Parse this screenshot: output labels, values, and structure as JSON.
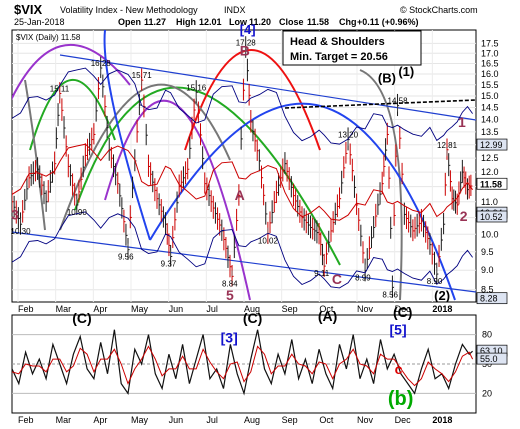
{
  "header": {
    "symbol": "$VIX",
    "name": "Volatility Index - New Methodology",
    "exchange": "INDX",
    "date": "25-Jan-2018",
    "open_label": "Open",
    "open": "11.27",
    "high_label": "High",
    "high": "12.01",
    "low_label": "Low",
    "low": "11.20",
    "close_label": "Close",
    "close": "11.58",
    "chg_label": "Chg",
    "chg": "+0.11 (+0.96%)",
    "copyright": "© StockCharts.com",
    "legend": "$VIX (Daily) 11.58"
  },
  "annotation_box": {
    "line1": "Head & Shoulders",
    "line2": "Min. Target = 20.56"
  },
  "colors": {
    "bar_up": "#1a1a1a",
    "bar_down": "#cc0000",
    "ma50": "#cc0000",
    "bollinger": "#000080",
    "channel": "#1f3fd0",
    "cycle_purple": "#9933cc",
    "cycle_green": "#22aa22",
    "cycle_red": "#ee1111",
    "cycle_gray": "#777777",
    "cycle_blue": "#2244ee",
    "wave_maroon": "#993355",
    "wave_blue": "#1111cc",
    "wave_green": "#00aa00",
    "wave_red": "#dd0000",
    "last_badge": "#dde4f2"
  },
  "chart_data": [
    {
      "type": "bar",
      "title": "$VIX (Daily) 11.58",
      "y_scale": "log",
      "ylim": [
        8.2,
        18.2
      ],
      "yticks": [
        "8.5",
        "9.0",
        "9.5",
        "10.0",
        "10.5",
        "11.0",
        "11.5",
        "12.0",
        "12.5",
        "13.0",
        "13.5",
        "14.0",
        "14.5",
        "15.0",
        "15.5",
        "16.0",
        "16.5",
        "17.0",
        "17.5"
      ],
      "x_months": [
        "Feb",
        "Mar",
        "Apr",
        "May",
        "Jun",
        "Jul",
        "Aug",
        "Sep",
        "Oct",
        "Nov",
        "Dec",
        "2018"
      ],
      "last_values": [
        {
          "label": "12.99",
          "value": 12.99
        },
        {
          "label": "11.58",
          "value": 11.58
        },
        {
          "label": "10.64",
          "value": 10.64
        },
        {
          "label": "10.52",
          "value": 10.52
        },
        {
          "label": "8.28",
          "value": 8.28
        }
      ],
      "price_labels": [
        {
          "text": "10.30",
          "x": 5,
          "y": 10.3
        },
        {
          "text": "15.11",
          "x": 28,
          "y": 15.11
        },
        {
          "text": "10.90",
          "x": 38,
          "y": 10.9
        },
        {
          "text": "16.28",
          "x": 52,
          "y": 16.28
        },
        {
          "text": "15.71",
          "x": 76,
          "y": 15.71
        },
        {
          "text": "9.56",
          "x": 68,
          "y": 9.56
        },
        {
          "text": "9.37",
          "x": 93,
          "y": 9.37
        },
        {
          "text": "15.16",
          "x": 108,
          "y": 15.16
        },
        {
          "text": "8.84",
          "x": 129,
          "y": 8.84
        },
        {
          "text": "17.28",
          "x": 137,
          "y": 17.28
        },
        {
          "text": "10.02",
          "x": 150,
          "y": 10.02
        },
        {
          "text": "9.11",
          "x": 183,
          "y": 9.11
        },
        {
          "text": "13.20",
          "x": 197,
          "y": 13.2
        },
        {
          "text": "8.99",
          "x": 207,
          "y": 8.99
        },
        {
          "text": "14.58",
          "x": 226,
          "y": 14.58
        },
        {
          "text": "8.56",
          "x": 223,
          "y": 8.56
        },
        {
          "text": "12.81",
          "x": 255,
          "y": 12.81
        },
        {
          "text": "8.90",
          "x": 249,
          "y": 8.9
        }
      ],
      "wave_labels": [
        {
          "text": "[4]",
          "x": 137,
          "y": 18.0,
          "color": "#1111cc"
        },
        {
          "text": "B",
          "x": 137,
          "y": 16.9,
          "color": "#993355"
        },
        {
          "text": "(B)",
          "x": 218,
          "y": 15.6,
          "color": "#000000"
        },
        {
          "text": "(1)",
          "x": 230,
          "y": 15.9,
          "color": "#000000"
        },
        {
          "text": "1",
          "x": 265,
          "y": 13.7,
          "color": "#993355"
        },
        {
          "text": "2",
          "x": 266,
          "y": 10.4,
          "color": "#993355"
        },
        {
          "text": "(2)",
          "x": 251,
          "y": 8.25,
          "color": "#000000"
        },
        {
          "text": "3",
          "x": 3,
          "y": 10.45,
          "color": "#993355"
        },
        {
          "text": "A",
          "x": 134,
          "y": 11.05,
          "color": "#993355"
        },
        {
          "text": "C",
          "x": 191,
          "y": 8.65,
          "color": "#993355"
        },
        {
          "text": "5",
          "x": 129,
          "y": 8.25,
          "color": "#993355"
        }
      ],
      "series": [
        {
          "name": "$VIX (Daily) 11.58",
          "x": [
            0,
            5,
            10,
            15,
            20,
            25,
            28,
            33,
            38,
            43,
            48,
            52,
            57,
            62,
            68,
            72,
            76,
            80,
            85,
            90,
            93,
            98,
            103,
            108,
            113,
            118,
            123,
            129,
            133,
            137,
            140,
            145,
            150,
            155,
            160,
            165,
            170,
            175,
            180,
            183,
            187,
            192,
            197,
            202,
            207,
            212,
            217,
            220,
            223,
            226,
            230,
            235,
            240,
            245,
            249,
            253,
            255,
            258,
            261,
            264,
            267,
            270
          ],
          "values": [
            11.0,
            10.3,
            11.8,
            12.1,
            11.0,
            12.3,
            15.11,
            12.2,
            10.9,
            12.6,
            13.4,
            16.28,
            12.8,
            11.6,
            9.56,
            12.4,
            15.71,
            12.2,
            11.1,
            10.3,
            9.37,
            11.5,
            12.1,
            15.16,
            11.6,
            10.8,
            10.1,
            8.84,
            11.2,
            17.28,
            13.9,
            12.4,
            10.02,
            11.3,
            12.3,
            11.2,
            10.5,
            10.2,
            10.0,
            9.11,
            10.1,
            11.1,
            13.2,
            10.9,
            8.99,
            10.2,
            11.6,
            13.4,
            8.56,
            14.58,
            10.6,
            10.1,
            10.4,
            9.7,
            8.9,
            10.3,
            12.81,
            11.1,
            10.9,
            12.0,
            11.4,
            11.58
          ]
        }
      ],
      "xlim": [
        0,
        272
      ]
    },
    {
      "type": "line",
      "title": "",
      "ylim": [
        0,
        100
      ],
      "yticks": [
        "20",
        "50",
        "80"
      ],
      "x_months": [
        "Feb",
        "Mar",
        "Apr",
        "May",
        "Jun",
        "Jul",
        "Aug",
        "Sep",
        "Oct",
        "Nov",
        "Dec",
        "2018"
      ],
      "last_values": [
        {
          "label": "63.10",
          "value": 63.1
        },
        {
          "label": "55.0",
          "value": 55.0
        }
      ],
      "wave_labels": [
        {
          "text": "(C)",
          "x": 40,
          "y": 92,
          "color": "#000000"
        },
        {
          "text": "(C)",
          "x": 140,
          "y": 92,
          "color": "#000000"
        },
        {
          "text": "(A)",
          "x": 184,
          "y": 94,
          "color": "#000000"
        },
        {
          "text": "(C)",
          "x": 228,
          "y": 98,
          "color": "#000000"
        },
        {
          "text": "[3]",
          "x": 127,
          "y": 72,
          "color": "#1111cc"
        },
        {
          "text": "[5]",
          "x": 226,
          "y": 80,
          "color": "#1111cc"
        },
        {
          "text": "c",
          "x": 229,
          "y": 40,
          "color": "#dd0000"
        },
        {
          "text": "(b)",
          "x": 225,
          "y": 8,
          "color": "#00aa00"
        }
      ],
      "series": [
        {
          "name": "",
          "x": [
            0,
            4,
            8,
            12,
            16,
            20,
            24,
            28,
            32,
            36,
            40,
            44,
            48,
            52,
            56,
            60,
            64,
            68,
            72,
            76,
            80,
            84,
            88,
            92,
            96,
            100,
            104,
            108,
            112,
            116,
            120,
            124,
            128,
            132,
            136,
            140,
            144,
            148,
            152,
            156,
            160,
            164,
            168,
            172,
            176,
            180,
            184,
            188,
            192,
            196,
            200,
            204,
            208,
            212,
            216,
            220,
            224,
            228,
            232,
            236,
            240,
            244,
            248,
            252,
            256,
            260,
            264,
            268,
            270
          ],
          "values": [
            45,
            30,
            62,
            40,
            55,
            35,
            70,
            50,
            30,
            60,
            78,
            45,
            35,
            72,
            40,
            85,
            30,
            20,
            65,
            50,
            80,
            40,
            25,
            60,
            35,
            70,
            30,
            55,
            80,
            35,
            45,
            25,
            70,
            40,
            20,
            55,
            85,
            45,
            30,
            60,
            40,
            75,
            35,
            55,
            30,
            65,
            40,
            25,
            70,
            45,
            80,
            35,
            55,
            30,
            75,
            45,
            60,
            40,
            30,
            20,
            45,
            65,
            35,
            40,
            25,
            50,
            70,
            60,
            63.1
          ]
        },
        {
          "name": "",
          "x": [
            0,
            4,
            8,
            12,
            16,
            20,
            24,
            28,
            32,
            36,
            40,
            44,
            48,
            52,
            56,
            60,
            64,
            68,
            72,
            76,
            80,
            84,
            88,
            92,
            96,
            100,
            104,
            108,
            112,
            116,
            120,
            124,
            128,
            132,
            136,
            140,
            144,
            148,
            152,
            156,
            160,
            164,
            168,
            172,
            176,
            180,
            184,
            188,
            192,
            196,
            200,
            204,
            208,
            212,
            216,
            220,
            224,
            228,
            232,
            236,
            240,
            244,
            248,
            252,
            256,
            260,
            264,
            268,
            270
          ],
          "values": [
            42,
            40,
            50,
            48,
            48,
            42,
            55,
            55,
            42,
            48,
            66,
            60,
            42,
            55,
            55,
            65,
            50,
            30,
            45,
            55,
            68,
            55,
            38,
            45,
            45,
            58,
            45,
            45,
            65,
            52,
            42,
            35,
            50,
            52,
            32,
            42,
            68,
            60,
            40,
            48,
            48,
            60,
            50,
            48,
            40,
            52,
            50,
            35,
            50,
            55,
            65,
            50,
            48,
            40,
            60,
            55,
            55,
            45,
            35,
            28,
            35,
            52,
            45,
            40,
            32,
            42,
            58,
            62,
            55
          ]
        }
      ],
      "xlim": [
        0,
        272
      ]
    }
  ]
}
